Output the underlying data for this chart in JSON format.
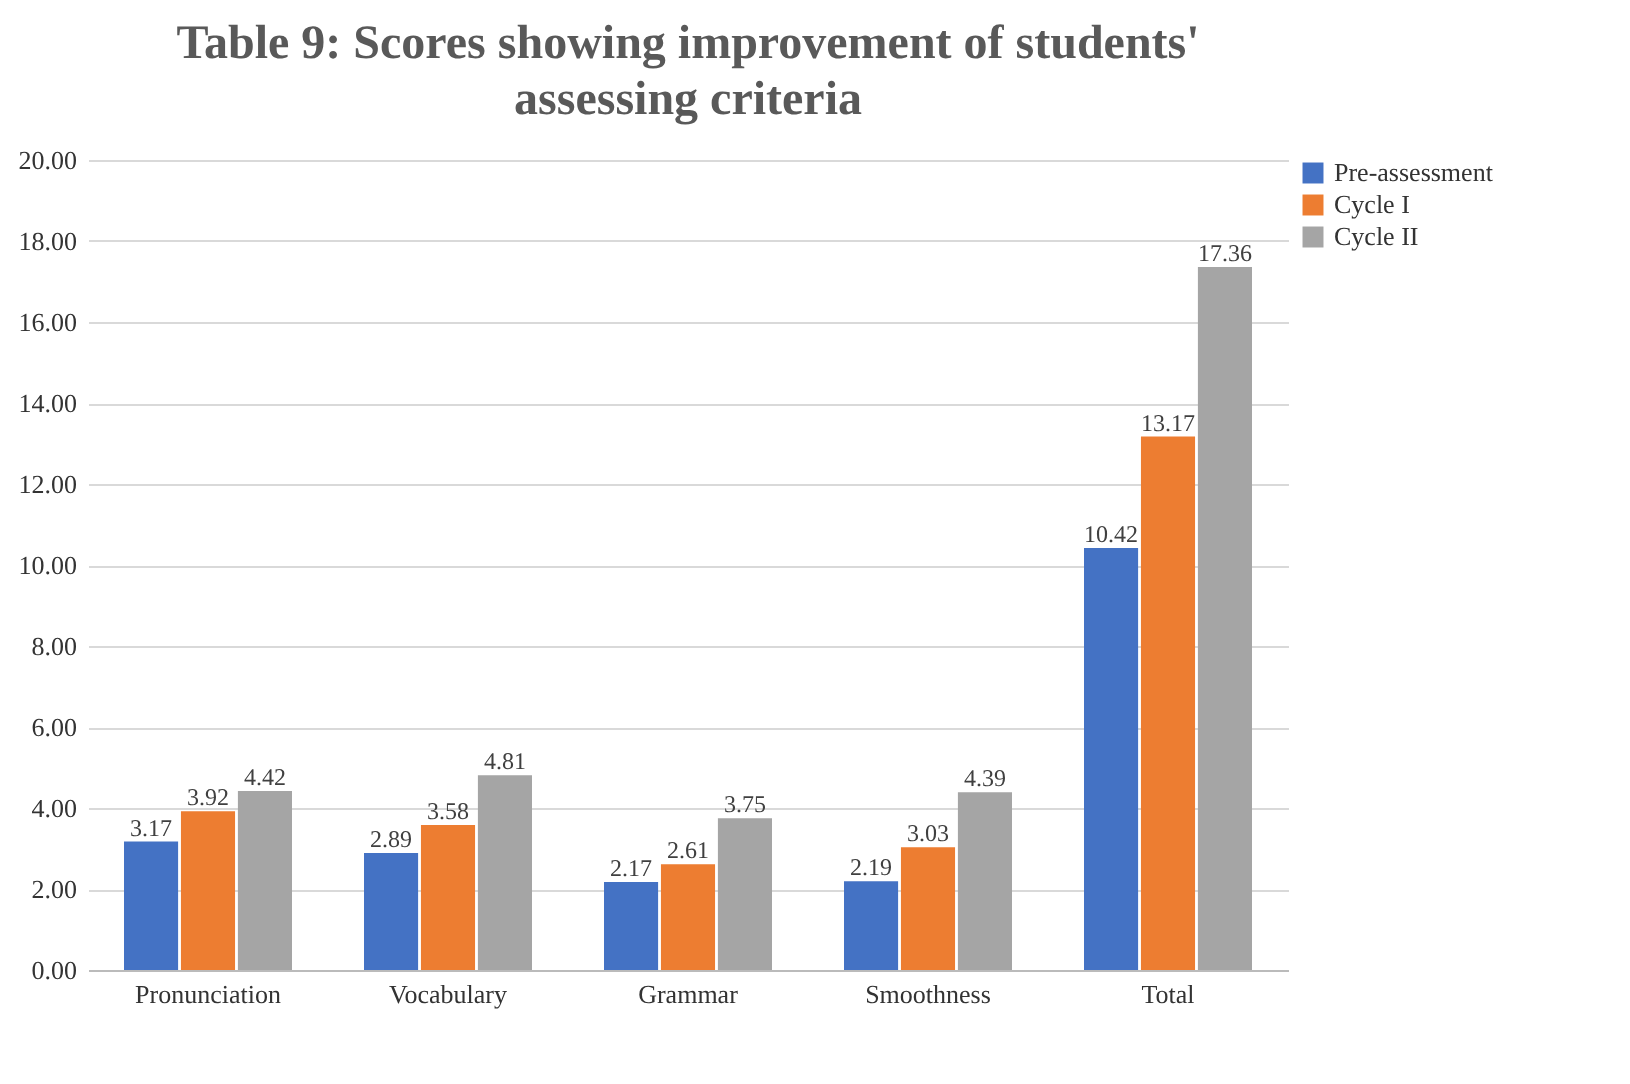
{
  "chart_data": {
    "type": "bar",
    "title": "Table 9: Scores showing improvement of students' assessing criteria",
    "categories": [
      "Pronunciation",
      "Vocabulary",
      "Grammar",
      "Smoothness",
      "Total"
    ],
    "series": [
      {
        "name": "Pre-assessment",
        "color": "#4472c4",
        "values": [
          3.17,
          2.89,
          2.17,
          2.19,
          10.42
        ]
      },
      {
        "name": "Cycle I",
        "color": "#ed7d31",
        "values": [
          3.92,
          3.58,
          2.61,
          3.03,
          13.17
        ]
      },
      {
        "name": "Cycle II",
        "color": "#a5a5a5",
        "values": [
          4.42,
          4.81,
          3.75,
          4.39,
          17.36
        ]
      }
    ],
    "ylim": [
      0,
      20
    ],
    "yticks": [
      {
        "value": 0,
        "label": "0.00"
      },
      {
        "value": 2,
        "label": "2.00"
      },
      {
        "value": 4,
        "label": "4.00"
      },
      {
        "value": 6,
        "label": "6.00"
      },
      {
        "value": 8,
        "label": "8.00"
      },
      {
        "value": 10,
        "label": "10.00"
      },
      {
        "value": 12,
        "label": "12.00"
      },
      {
        "value": 14,
        "label": "14.00"
      },
      {
        "value": 16,
        "label": "16.00"
      },
      {
        "value": 18,
        "label": "18.00"
      },
      {
        "value": 20,
        "label": "20.00"
      }
    ],
    "grid": "y",
    "legend": "right",
    "data_labels": true
  }
}
